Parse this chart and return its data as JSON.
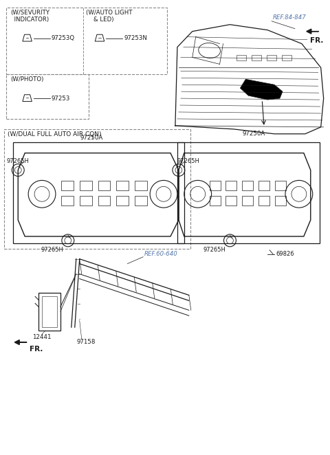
{
  "bg_color": "#ffffff",
  "line_color": "#1a1a1a",
  "gray_line": "#888888",
  "ref_color": "#5577aa",
  "parts": {
    "top_box_label1": "(W/SEVURITY\n  INDICATOR)",
    "top_box_label2": "(W/AUTO LIGHT\n    & LED)",
    "top_box_label3": "(W/PHOTO)",
    "part_97253Q": "97253Q",
    "part_97253N": "97253N",
    "part_97253": "97253",
    "mid_box_label": "(W/DUAL FULL AUTO AIR CON)",
    "part_97250A_top": "97250A",
    "part_97265H": "97265H",
    "part_97250A_bot": "97250A",
    "part_97265H_r1": "97265H",
    "part_97265H_r2": "97265H",
    "part_69826": "69826",
    "ref_84_847": "REF.84-847",
    "ref_60_640": "REF.60-640",
    "part_12441": "12441",
    "part_97158": "97158",
    "fr_text": "FR."
  }
}
